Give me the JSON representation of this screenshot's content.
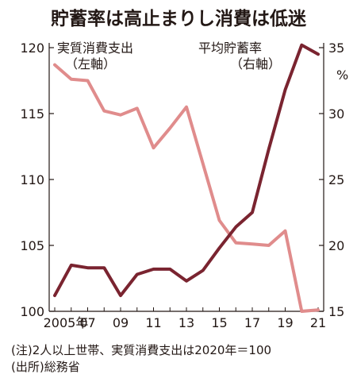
{
  "title": "貯蓄率は高止まりし消費は低迷",
  "chart_data": {
    "type": "line",
    "x": [
      2005,
      2006,
      2007,
      2008,
      2009,
      2010,
      2011,
      2012,
      2013,
      2014,
      2015,
      2016,
      2017,
      2018,
      2019,
      2020,
      2021
    ],
    "x_tick_labels": [
      "2005年",
      "07",
      "09",
      "11",
      "13",
      "15",
      "17",
      "19",
      "21"
    ],
    "x_tick_years": [
      2005,
      2007,
      2009,
      2011,
      2013,
      2015,
      2017,
      2019,
      2021
    ],
    "series": [
      {
        "name": "実質消費支出",
        "name_sub": "（左軸）",
        "axis": "left",
        "color": "#e08c8c",
        "values": [
          118.7,
          117.6,
          117.5,
          115.2,
          114.9,
          115.4,
          112.4,
          113.9,
          115.5,
          111.2,
          106.9,
          105.2,
          105.1,
          105.0,
          106.1,
          100.0,
          100.1
        ]
      },
      {
        "name": "平均貯蓄率",
        "name_sub": "（右軸）",
        "axis": "right",
        "color": "#7a2430",
        "values": [
          16.2,
          18.5,
          18.3,
          18.3,
          16.2,
          17.8,
          18.2,
          18.2,
          17.3,
          18.1,
          19.8,
          21.4,
          22.5,
          27.3,
          31.8,
          35.2,
          34.5
        ]
      }
    ],
    "left_axis": {
      "ylim": [
        100,
        120
      ],
      "ticks": [
        100,
        105,
        110,
        115,
        120
      ]
    },
    "right_axis": {
      "ylim": [
        15,
        35
      ],
      "ticks": [
        15,
        20,
        25,
        30,
        35
      ],
      "unit": "%"
    },
    "grid": false
  },
  "notes": {
    "note": "(注)2人以上世帯、実質消費支出は2020年＝100",
    "source": "(出所)総務省"
  }
}
